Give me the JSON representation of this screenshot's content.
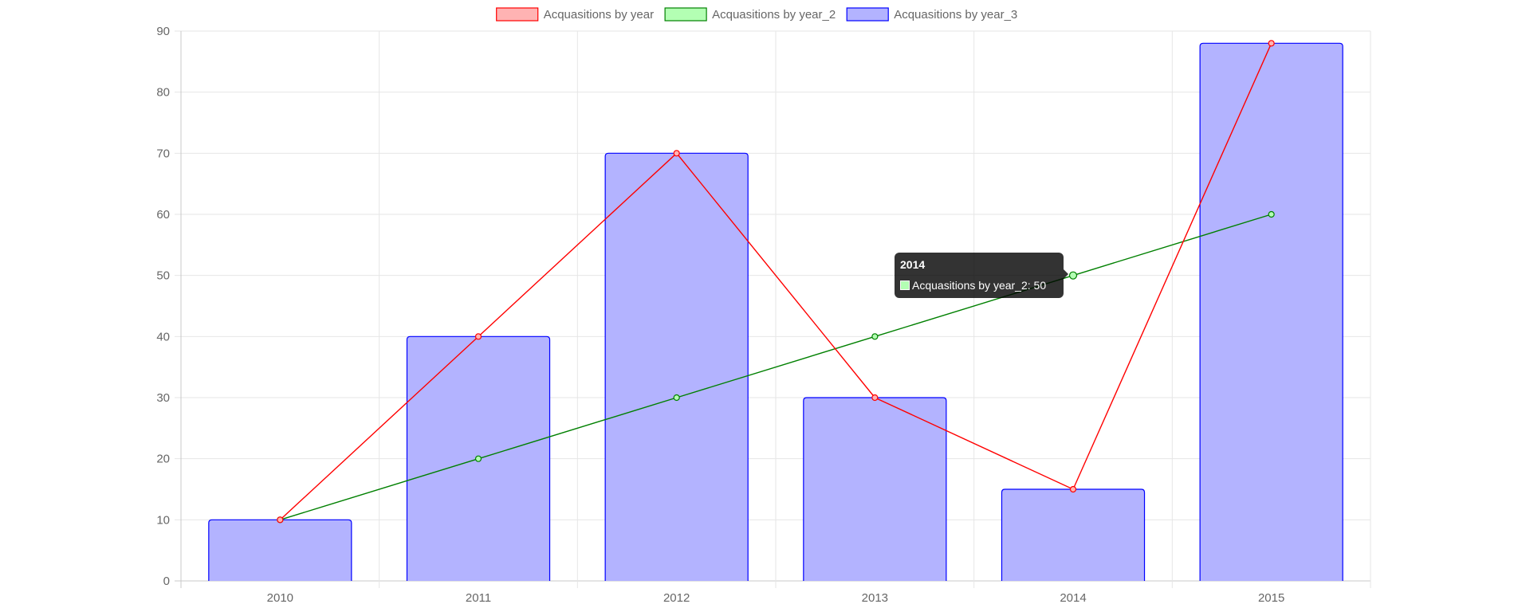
{
  "chart_data": {
    "type": "bar",
    "categories": [
      "2010",
      "2011",
      "2012",
      "2013",
      "2014",
      "2015"
    ],
    "series": [
      {
        "name": "Acquasitions by year",
        "type": "line",
        "values": [
          10,
          40,
          70,
          30,
          15,
          88
        ],
        "color": "#ff0000",
        "fill": "#ffb3b3"
      },
      {
        "name": "Acquasitions by year_2",
        "type": "line",
        "values": [
          10,
          20,
          30,
          40,
          50,
          60
        ],
        "color": "#008000",
        "fill": "#b3ffb3"
      },
      {
        "name": "Acquasitions by year_3",
        "type": "bar",
        "values": [
          10,
          40,
          70,
          30,
          15,
          88
        ],
        "color": "#0000ff",
        "fill": "#b3b3ff"
      }
    ],
    "y_ticks": [
      "0",
      "10",
      "20",
      "30",
      "40",
      "50",
      "60",
      "70",
      "80",
      "90"
    ],
    "ylim": [
      0,
      90
    ],
    "grid": true,
    "legend_position": "top",
    "tooltip": {
      "title": "2014",
      "label": "Acquasitions by year_2: 50",
      "swatch_color": "#b3ffb3"
    }
  }
}
